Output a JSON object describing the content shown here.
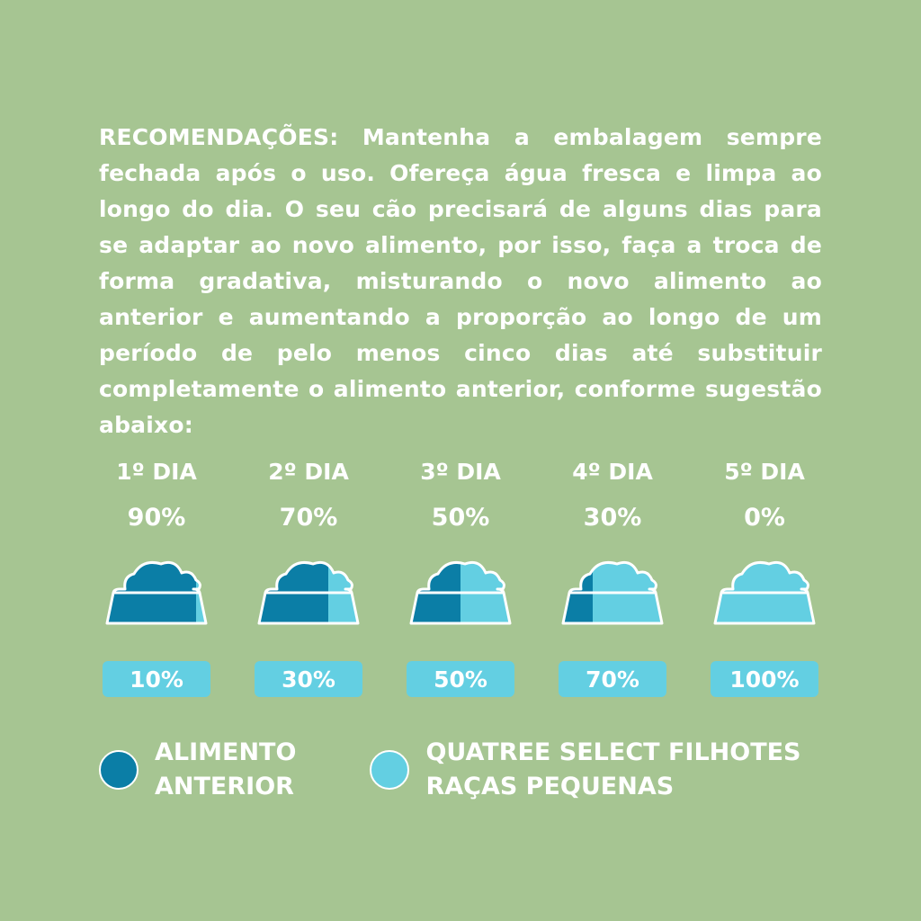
{
  "intro_text": "RECOMENDAÇÕES: Mantenha a embalagem sempre fechada após o uso. Ofereça água fresca e limpa ao longo do dia. O seu cão precisará de alguns dias para se adaptar ao novo alimento, por isso, faça a troca de forma gradativa, misturando o novo alimento ao anterior e aumentando a proporção ao longo de um período de pelo menos cinco dias até substituir completamente o alimento anterior, conforme sugestão abaixo:",
  "colors": {
    "background": "#a6c592",
    "old_food": "#0b7ea6",
    "new_food": "#63cfe2",
    "outline": "#ffffff"
  },
  "days": [
    {
      "label": "1º DIA",
      "old_percent": "90%",
      "new_percent": "10%",
      "old_fraction": 0.9
    },
    {
      "label": "2º DIA",
      "old_percent": "70%",
      "new_percent": "30%",
      "old_fraction": 0.7
    },
    {
      "label": "3º DIA",
      "old_percent": "50%",
      "new_percent": "50%",
      "old_fraction": 0.5
    },
    {
      "label": "4º DIA",
      "old_percent": "30%",
      "new_percent": "70%",
      "old_fraction": 0.3
    },
    {
      "label": "5º DIA",
      "old_percent": "0%",
      "new_percent": "100%",
      "old_fraction": 0.0
    }
  ],
  "legend": {
    "old_label": "ALIMENTO\nANTERIOR",
    "new_label": "QUATREE SELECT FILHOTES\nRAÇAS PEQUENAS"
  }
}
